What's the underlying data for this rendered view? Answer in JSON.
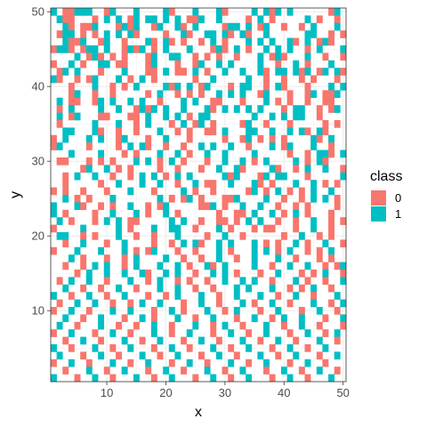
{
  "chart_data": {
    "type": "heatmap",
    "title": "",
    "xlabel": "x",
    "ylabel": "y",
    "xlim": [
      0.5,
      50.5
    ],
    "ylim": [
      0.5,
      50.5
    ],
    "x_ticks": [
      10,
      20,
      30,
      40,
      50
    ],
    "y_ticks": [
      10,
      20,
      30,
      40,
      50
    ],
    "grid": true,
    "legend": {
      "title": "class",
      "position": "right",
      "entries": [
        {
          "label": "0",
          "color": "#F8766D"
        },
        {
          "label": "1",
          "color": "#00BFC4"
        }
      ]
    },
    "rows": [
      "1.00111..01...1....10...1...10....1.101.1......01.",
      ".100...0.1.1.01.11.1.1.001..1....0.1.0.....1.0..0.",
      "..10.001...0101..01..10.1....011.1.01..0..0.1...1.",
      ".011.0.0.1.1.10....0..10..11.10.10..1......11..0.0",
      "..1001..01..0...10.10.0..0.1.0...1.1.1..10.1.010..",
      "0110.011.1..0101.0.1...1...010.1.0..1.1.1..0.1...1",
      "....1.010.0.0...01..11..0.0.0..0...1.010...1..0..0",
      "0..1.0..11.00...01...0..01..1.1....1..0..1.0...1..",
      ".01.1...0...1...00.1.00.1.0..1..1..10.11.101.01.10",
      "10..0.01...1.0.1.0......0..1.....1..0..0..0.0...0.",
      "...0...1..0.0.1....101.1.01...0.11..0.10...0...1.1",
      "...01..0..0.....0.1..0.0.0..1.1.1..01...0..01.001.",
      ".1.00..01.1..1.1..0...1.1..00...0...1.0.0..0..00..",
      ".0.1....1..1..0101.1..1...10.1.1.1.1...0.11..0.01.",
      ".1.01...00...00.1..1.1.0.11.......1..1.1.11..0....",
      ".0.....1...1..0.1...0.1.01.0....01..0...0.....0.0.",
      "..11...10..0..0...1..0.0..00.1...11..1..1.10.10...",
      "0.1...1.1..01...0..1...0.....0..01.0.0.0....10.1..",
      "01....0....0.1.10..0..0..1.1..1..0...1.01...1..0..",
      "...1....1...0.0...1..1.0..1..1....1.....0..0.110.1",
      ".00...0.0.0...1.1.0.1.0...0..1..1.0.1....1.0.10...",
      ".....01..1.0.0....0..0...0..1..10....10..0.1..1..0",
      "..0.1..1..0..0.1.1.0.1.1.....101...01.11...0.....1",
      "..0.....0..1...1..1..0..1.00..1...10.0...1..1.0.0.",
      "0.0..0...0...1...0....1.0..0.....01.0.1.0.0.1..1..",
      "..1.0.0...1.......1.0.01.0...001....1..0..0.1.1.0.",
      "1...10..0.0..1..0.01.....001.0..1..1..0..0.0....0.",
      "1.0....0..1...1.0..1.0......0..00.1..1.0.1.0...0..",
      ".1.0...0.1.1.00.....1.1..0..00.0.1.1..0..0..1..0.0",
      "0....1.....1.0...1..11..0...1.0...0.00...0..1..0..",
      ".11..0.0...1..0..0...1....0..1..0......0..1..0.0..",
      "..0..1...0..1....0..0.1.10..1.1...1.0.0..1.0..1..0",
      "0...1...1...1.0.01...0..0...1.0...1.1.0.1..0.0.1..",
      "...1.0...0..0.1....1..0..0..1..0..1...1..0...0.0..",
      "..0..0.1.1..0.1...1..1.0..10.1....1..0..1..1..0.01",
      "....0.1..1..1..10..1.1..0..1.1.0...0..1...0.0.1..0",
      ".0.1..1..0...1..0.1..0.0..0..1..1.1..0...1.0..0..1",
      "..1..0..0..1..0...1..1..0..0...1.1...1..0.0.1..0..",
      "1..0..1..0..1...0..0.1...1..0..1...1..0..1..0...1.",
      ".0..1..1..0..0.1..1...0..1..0...1.0..1..0...1..0.1",
      "0..1..0...1..1...0..1.0...1..0.1...0..1...0..1..0.",
      "..1..0..1...0..1.0...1..0..1...0..1..0.1..1...0..1",
      ".1..0...1..0..0..1..0...1..0.1..0...1..0..1..0...0",
      "0..1...0..1..0...1..0..1...0..1..0..1...0..1..0.1.",
      "..0..1..0...1..0..1...0..1..0...1..0..1..0...1..0.",
      "1..0...1..0..1...0..1..0...1..0..1...0..1..0..1...",
      ".1...0..1..0...1..0..1...0..1..0...1..0..1...0..1.",
      "0..1..0...1..0..1...0..1..0...1..0..1...0..1..0...",
      "..0...1..0..1...0..1..0...1..0..1...0..1..0..1..0.",
      "1...0..1..0...1..0..1...0..1..0..1...0..1..0...1.."
    ]
  }
}
